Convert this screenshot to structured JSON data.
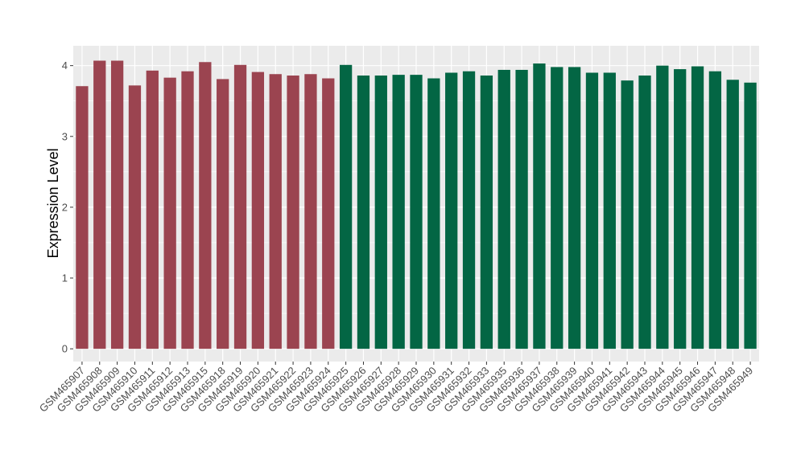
{
  "chart_data": {
    "type": "bar",
    "ylabel": "Expression Level",
    "xlabel": "",
    "ylim": [
      -0.18,
      4.28
    ],
    "yticks": [
      0,
      1,
      2,
      3,
      4
    ],
    "grid": true,
    "colors": {
      "panel": "#ebebeb",
      "grid": "#ffffff",
      "group1": "#9b4450",
      "group2": "#036644"
    },
    "categories": [
      "GSM465907",
      "GSM465908",
      "GSM465909",
      "GSM465910",
      "GSM465911",
      "GSM465912",
      "GSM465913",
      "GSM465915",
      "GSM465918",
      "GSM465919",
      "GSM465920",
      "GSM465921",
      "GSM465922",
      "GSM465923",
      "GSM465924",
      "GSM465925",
      "GSM465926",
      "GSM465927",
      "GSM465928",
      "GSM465929",
      "GSM465930",
      "GSM465931",
      "GSM465932",
      "GSM465933",
      "GSM465935",
      "GSM465936",
      "GSM465937",
      "GSM465938",
      "GSM465939",
      "GSM465940",
      "GSM465941",
      "GSM465942",
      "GSM465943",
      "GSM465944",
      "GSM465945",
      "GSM465946",
      "GSM465947",
      "GSM465948",
      "GSM465949"
    ],
    "values": [
      3.71,
      4.07,
      4.07,
      3.72,
      3.93,
      3.83,
      3.92,
      4.05,
      3.81,
      4.01,
      3.91,
      3.88,
      3.86,
      3.88,
      3.82,
      4.01,
      3.86,
      3.86,
      3.87,
      3.87,
      3.82,
      3.9,
      3.92,
      3.86,
      3.94,
      3.94,
      4.03,
      3.98,
      3.98,
      3.9,
      3.9,
      3.79,
      3.86,
      4.0,
      3.95,
      3.99,
      3.92,
      3.8,
      3.76
    ],
    "groups": [
      1,
      1,
      1,
      1,
      1,
      1,
      1,
      1,
      1,
      1,
      1,
      1,
      1,
      1,
      1,
      2,
      2,
      2,
      2,
      2,
      2,
      2,
      2,
      2,
      2,
      2,
      2,
      2,
      2,
      2,
      2,
      2,
      2,
      2,
      2,
      2,
      2,
      2,
      2
    ]
  }
}
